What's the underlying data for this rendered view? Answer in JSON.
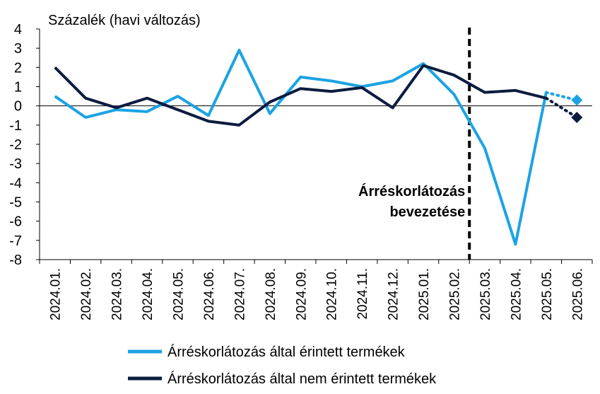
{
  "chart_data": {
    "type": "line",
    "ylabel": "Százalék (havi változás)",
    "ylim": [
      -8,
      4
    ],
    "yticks": [
      4,
      3,
      2,
      1,
      0,
      -1,
      -2,
      -3,
      -4,
      -5,
      -6,
      -7,
      -8
    ],
    "grid": false,
    "legend_position": "bottom",
    "categories": [
      "2024.01.",
      "2024.02.",
      "2024.03.",
      "2024.04.",
      "2024.05.",
      "2024.06.",
      "2024.07.",
      "2024.08.",
      "2024.09.",
      "2024.10.",
      "2024.11.",
      "2024.12.",
      "2025.01.",
      "2025.02.",
      "2025.03.",
      "2025.04.",
      "2025.05.",
      "2025.06."
    ],
    "series": [
      {
        "name": "Árréskorlátozás által érintett termékek",
        "color": "#1ca3e3",
        "values": [
          0.5,
          -0.6,
          -0.2,
          -0.3,
          0.5,
          -0.5,
          2.9,
          -0.4,
          1.5,
          1.3,
          1.0,
          1.3,
          2.2,
          0.6,
          -2.2,
          -7.2,
          0.7,
          0.3
        ],
        "forecast_from_index": 16
      },
      {
        "name": "Árréskorlátozás által nem érintett termékek",
        "color": "#0c1c3f",
        "values": [
          2.0,
          0.4,
          -0.1,
          0.4,
          -0.2,
          -0.8,
          -1.0,
          0.2,
          0.9,
          0.75,
          0.95,
          -0.1,
          2.1,
          1.6,
          0.7,
          0.8,
          0.4,
          -0.6
        ],
        "forecast_from_index": 16
      }
    ],
    "annotations": [
      {
        "text_lines": [
          "Árréskorlátozás",
          "bevezetése"
        ],
        "vline_between": [
          "2025.02.",
          "2025.03."
        ],
        "style": "dashed"
      }
    ]
  }
}
